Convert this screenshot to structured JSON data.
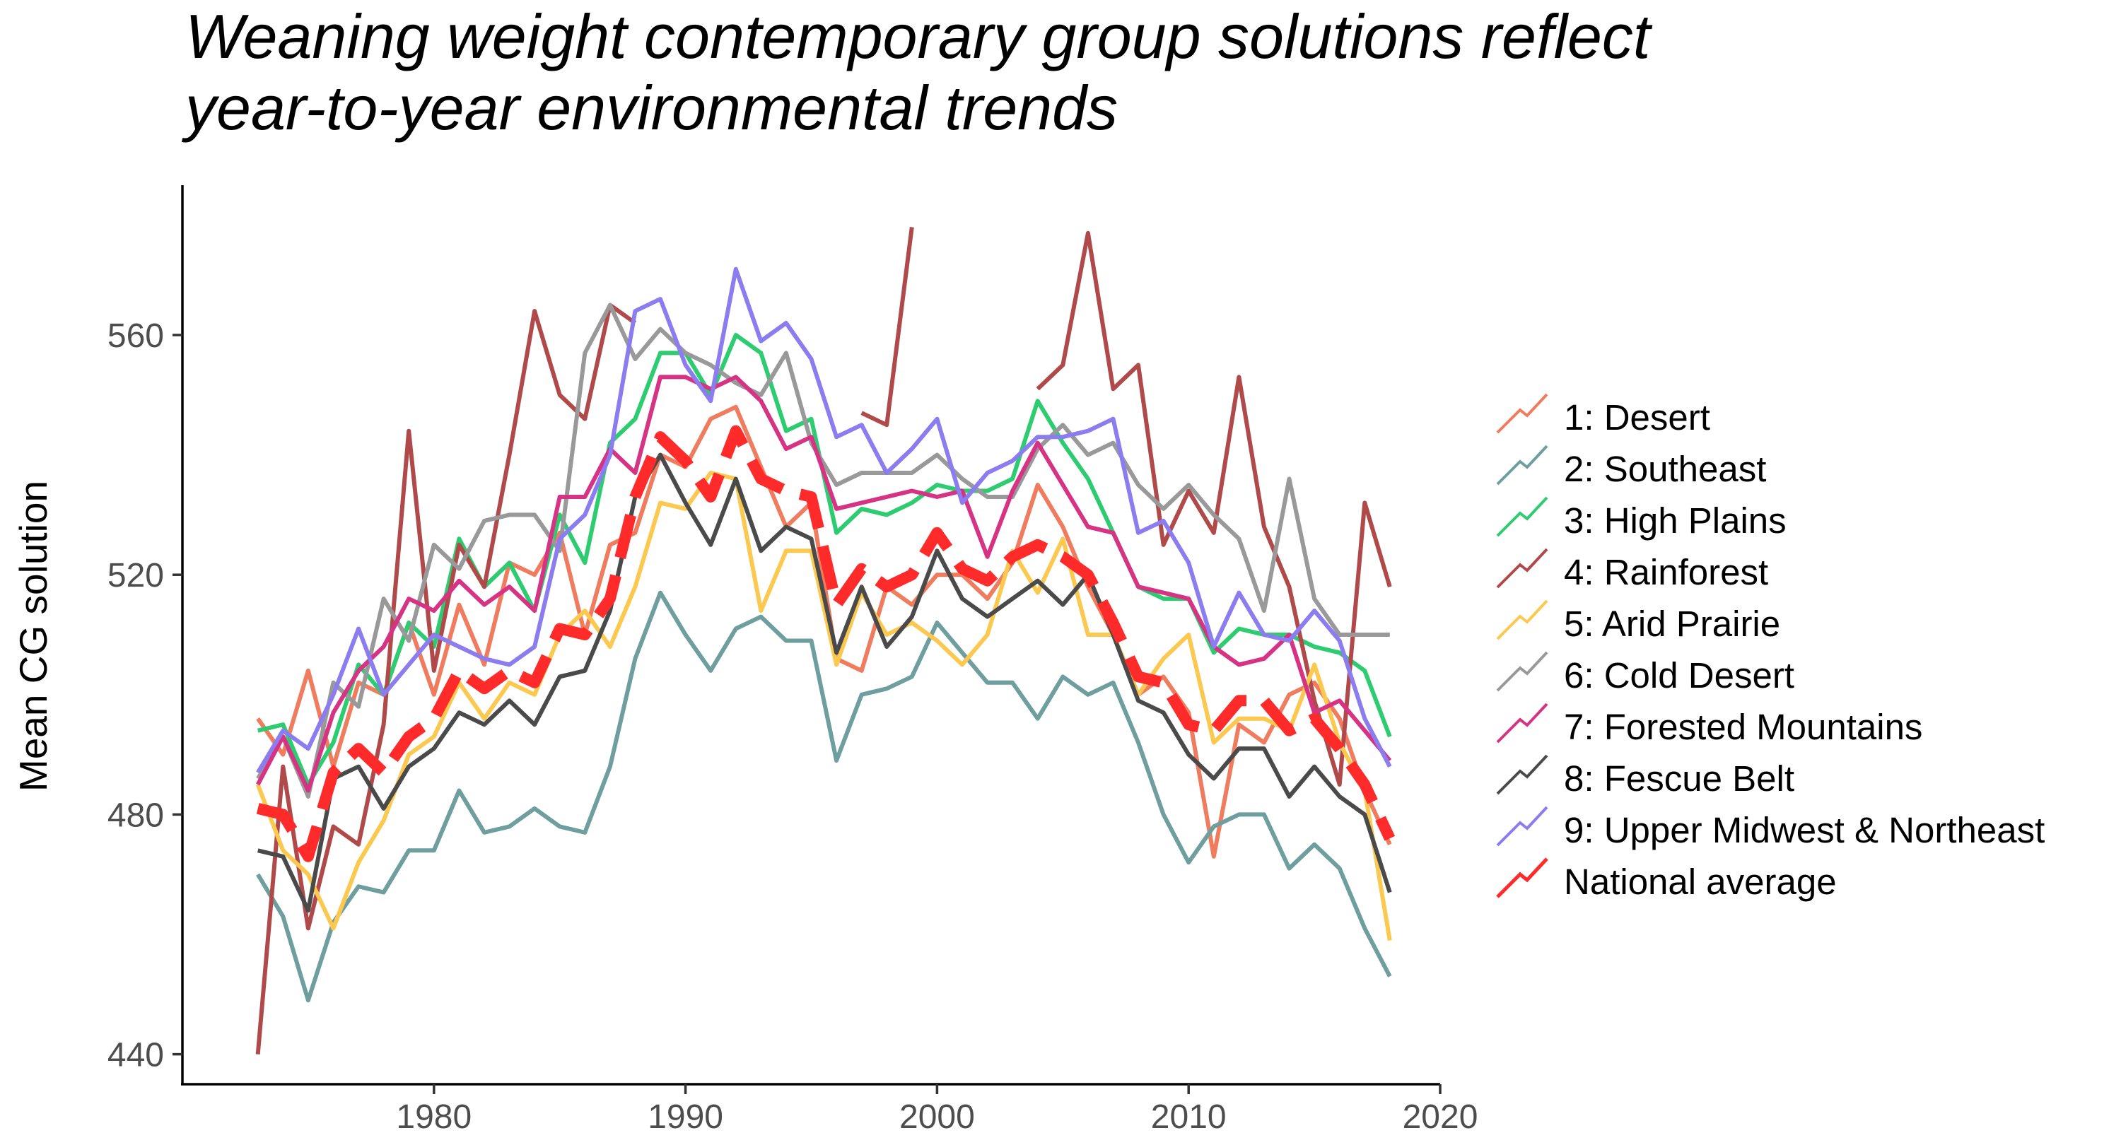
{
  "chart_data": {
    "type": "line",
    "title_lines": [
      "Weaning weight contemporary group solutions reflect",
      "year-to-year environmental trends"
    ],
    "xlabel": "",
    "ylabel": "Mean CG solution",
    "xlim": [
      1970,
      2020
    ],
    "ylim": [
      435,
      585
    ],
    "x_ticks": [
      1980,
      1990,
      2000,
      2010,
      2020
    ],
    "y_ticks": [
      440,
      480,
      520,
      560
    ],
    "grid": false,
    "legend_position": "right",
    "x": [
      1973,
      1974,
      1975,
      1976,
      1977,
      1978,
      1979,
      1980,
      1981,
      1982,
      1983,
      1984,
      1985,
      1986,
      1987,
      1988,
      1989,
      1990,
      1991,
      1992,
      1993,
      1994,
      1995,
      1996,
      1997,
      1998,
      1999,
      2000,
      2001,
      2002,
      2003,
      2004,
      2005,
      2006,
      2007,
      2008,
      2009,
      2010,
      2011,
      2012,
      2013,
      2014,
      2015,
      2016,
      2017,
      2018
    ],
    "series": [
      {
        "name": "1: Desert",
        "color": "#F07C5F",
        "dashed": false,
        "values": [
          496,
          490,
          504,
          488,
          502,
          500,
          512,
          500,
          515,
          505,
          522,
          520,
          527,
          510,
          525,
          527,
          540,
          538,
          546,
          548,
          538,
          528,
          532,
          506,
          504,
          518,
          515,
          520,
          520,
          516,
          522,
          535,
          528,
          518,
          510,
          500,
          503,
          497,
          473,
          495,
          492,
          500,
          502,
          496,
          484,
          475
        ]
      },
      {
        "name": "2: Southeast",
        "color": "#6F9E9E",
        "dashed": false,
        "values": [
          470,
          463,
          449,
          462,
          468,
          467,
          474,
          474,
          484,
          477,
          478,
          481,
          478,
          477,
          488,
          506,
          517,
          510,
          504,
          511,
          513,
          509,
          509,
          489,
          500,
          501,
          503,
          512,
          507,
          502,
          502,
          496,
          503,
          500,
          502,
          492,
          480,
          472,
          478,
          480,
          480,
          471,
          475,
          471,
          461,
          453
        ]
      },
      {
        "name": "3: High Plains",
        "color": "#2ECC71",
        "dashed": false,
        "values": [
          494,
          495,
          485,
          492,
          505,
          500,
          512,
          508,
          526,
          518,
          522,
          514,
          530,
          522,
          542,
          546,
          557,
          557,
          550,
          560,
          557,
          544,
          546,
          527,
          531,
          530,
          532,
          535,
          534,
          534,
          536,
          549,
          542,
          536,
          527,
          518,
          516,
          516,
          507,
          511,
          510,
          510,
          508,
          507,
          504,
          493
        ]
      },
      {
        "name": "4: Rainforest",
        "color": "#B04A4A",
        "dashed": false,
        "values": [
          440,
          488,
          461,
          478,
          475,
          495,
          544,
          504,
          525,
          518,
          540,
          564,
          550,
          546,
          565,
          562,
          null,
          null,
          null,
          null,
          null,
          null,
          null,
          null,
          547,
          545,
          578,
          null,
          null,
          null,
          null,
          551,
          555,
          577,
          551,
          555,
          525,
          534,
          527,
          553,
          528,
          518,
          499,
          485,
          532,
          518
        ]
      },
      {
        "name": "5: Arid Prairie",
        "color": "#FBC850",
        "dashed": false,
        "values": [
          485,
          474,
          470,
          461,
          472,
          479,
          490,
          493,
          502,
          496,
          502,
          500,
          510,
          514,
          508,
          518,
          532,
          531,
          537,
          536,
          514,
          524,
          524,
          505,
          517,
          510,
          512,
          509,
          505,
          510,
          524,
          517,
          526,
          510,
          510,
          500,
          506,
          510,
          492,
          496,
          496,
          494,
          505,
          492,
          484,
          459
        ]
      },
      {
        "name": "6: Cold Desert",
        "color": "#999999",
        "dashed": false,
        "values": [
          486,
          493,
          483,
          502,
          498,
          516,
          509,
          525,
          521,
          529,
          530,
          530,
          524,
          557,
          565,
          556,
          561,
          557,
          555,
          552,
          550,
          557,
          542,
          535,
          537,
          537,
          537,
          540,
          536,
          533,
          533,
          541,
          545,
          540,
          542,
          535,
          531,
          535,
          530,
          526,
          514,
          536,
          516,
          510,
          510,
          510
        ]
      },
      {
        "name": "7: Forested Mountains",
        "color": "#D63384",
        "dashed": false,
        "values": [
          485,
          493,
          484,
          497,
          504,
          508,
          516,
          514,
          519,
          515,
          518,
          514,
          533,
          533,
          541,
          537,
          553,
          553,
          551,
          553,
          549,
          541,
          543,
          531,
          532,
          533,
          534,
          533,
          534,
          523,
          534,
          542,
          535,
          528,
          527,
          518,
          517,
          516,
          508,
          505,
          506,
          510,
          497,
          499,
          494,
          489
        ]
      },
      {
        "name": "8: Fescue Belt",
        "color": "#4A4A4A",
        "dashed": false,
        "values": [
          474,
          473,
          464,
          486,
          488,
          481,
          488,
          491,
          497,
          495,
          499,
          495,
          503,
          504,
          514,
          533,
          540,
          532,
          525,
          536,
          524,
          528,
          526,
          507,
          518,
          508,
          513,
          524,
          516,
          513,
          516,
          519,
          515,
          520,
          510,
          499,
          497,
          490,
          486,
          491,
          491,
          483,
          488,
          483,
          480,
          467
        ]
      },
      {
        "name": "9: Upper Midwest & Northeast",
        "color": "#8B7CF0",
        "dashed": false,
        "values": [
          487,
          494,
          491,
          500,
          511,
          500,
          505,
          510,
          508,
          506,
          505,
          508,
          526,
          530,
          540,
          564,
          566,
          555,
          549,
          571,
          559,
          562,
          556,
          543,
          545,
          537,
          541,
          546,
          532,
          537,
          539,
          543,
          543,
          544,
          546,
          527,
          529,
          522,
          508,
          517,
          510,
          509,
          514,
          509,
          496,
          488
        ]
      },
      {
        "name": "National average",
        "color": "#FF2A2A",
        "dashed": true,
        "values": [
          481,
          480,
          473,
          487,
          491,
          487,
          493,
          496,
          504,
          501,
          504,
          502,
          511,
          510,
          516,
          533,
          543,
          539,
          533,
          544,
          536,
          534,
          533,
          515,
          521,
          518,
          520,
          527,
          521,
          519,
          523,
          525,
          523,
          520,
          512,
          503,
          502,
          495,
          494,
          499,
          499,
          494,
          496,
          491,
          485,
          476
        ]
      }
    ]
  }
}
